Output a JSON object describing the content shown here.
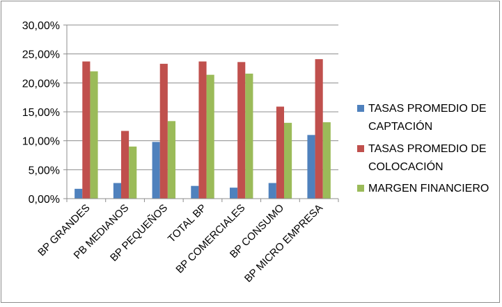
{
  "chart_data": {
    "type": "bar",
    "title": "",
    "xlabel": "",
    "ylabel": "",
    "ylim": [
      0,
      0.3
    ],
    "yticks": [
      0,
      0.05,
      0.1,
      0.15,
      0.2,
      0.25,
      0.3
    ],
    "ytick_labels": [
      "0,00%",
      "5,00%",
      "10,00%",
      "15,00%",
      "20,00%",
      "25,00%",
      "30,00%"
    ],
    "grid": true,
    "legend_position": "right",
    "categories": [
      "BP GRANDES",
      "PB MEDIANOS",
      "BP PEQUEÑOS",
      "TOTAL BP",
      "BP COMERCIALES",
      "BP CONSUMO",
      "BP MICRO EMPRESA"
    ],
    "series": [
      {
        "name": "TASAS PROMEDIO DE CAPTACIÓN",
        "legend_lines": [
          "TASAS PROMEDIO DE",
          "CAPTACIÓN"
        ],
        "color": "#4f81bd",
        "values": [
          0.017,
          0.027,
          0.098,
          0.022,
          0.019,
          0.027,
          0.11
        ]
      },
      {
        "name": "TASAS PROMEDIO DE COLOCACIÓN",
        "legend_lines": [
          "TASAS PROMEDIO DE",
          "COLOCACIÓN"
        ],
        "color": "#c0504d",
        "values": [
          0.237,
          0.117,
          0.233,
          0.237,
          0.236,
          0.159,
          0.241
        ]
      },
      {
        "name": "MARGEN FINANCIERO",
        "legend_lines": [
          "MARGEN FINANCIERO"
        ],
        "color": "#9bbb59",
        "values": [
          0.22,
          0.09,
          0.134,
          0.214,
          0.216,
          0.131,
          0.132
        ]
      }
    ]
  }
}
